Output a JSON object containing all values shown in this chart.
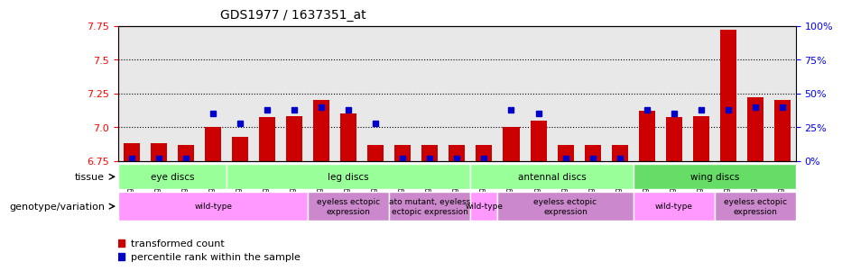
{
  "title": "GDS1977 / 1637351_at",
  "samples": [
    "GSM91570",
    "GSM91585",
    "GSM91609",
    "GSM91616",
    "GSM91617",
    "GSM91618",
    "GSM91619",
    "GSM91478",
    "GSM91479",
    "GSM91480",
    "GSM91472",
    "GSM91473",
    "GSM91474",
    "GSM91484",
    "GSM91491",
    "GSM91515",
    "GSM91475",
    "GSM91476",
    "GSM91477",
    "GSM91620",
    "GSM91621",
    "GSM91622",
    "GSM91481",
    "GSM91482",
    "GSM91483"
  ],
  "red_values": [
    6.88,
    6.88,
    6.87,
    7.0,
    6.93,
    7.07,
    7.08,
    7.2,
    7.1,
    6.87,
    6.87,
    6.87,
    6.87,
    6.87,
    7.0,
    7.05,
    6.87,
    6.87,
    6.87,
    7.12,
    7.07,
    7.08,
    7.72,
    7.22,
    7.2
  ],
  "blue_values": [
    0.02,
    0.02,
    0.02,
    0.35,
    0.28,
    0.38,
    0.38,
    0.4,
    0.38,
    0.28,
    0.02,
    0.02,
    0.02,
    0.02,
    0.38,
    0.35,
    0.02,
    0.02,
    0.02,
    0.38,
    0.35,
    0.38,
    0.38,
    0.4,
    0.4
  ],
  "y_min": 6.75,
  "y_max": 7.75,
  "y_ticks": [
    6.75,
    7.0,
    7.25,
    7.5,
    7.75
  ],
  "right_y_ticks": [
    0,
    25,
    50,
    75,
    100
  ],
  "right_y_labels": [
    "0%",
    "25%",
    "50%",
    "75%",
    "100%"
  ],
  "tissue_groups": [
    {
      "label": "eye discs",
      "start": 0,
      "end": 4,
      "color": "#99ff99"
    },
    {
      "label": "leg discs",
      "start": 4,
      "end": 13,
      "color": "#99ff99"
    },
    {
      "label": "antennal discs",
      "start": 13,
      "end": 19,
      "color": "#99ff99"
    },
    {
      "label": "wing discs",
      "start": 19,
      "end": 25,
      "color": "#66cc66"
    }
  ],
  "genotype_groups": [
    {
      "label": "wild-type",
      "start": 0,
      "end": 7,
      "color": "#ff99ff"
    },
    {
      "label": "eyeless ectopic\nexpression",
      "start": 7,
      "end": 10,
      "color": "#ff99ff"
    },
    {
      "label": "ato mutant, eyeless\nectopic expression",
      "start": 10,
      "end": 13,
      "color": "#ff99ff"
    },
    {
      "label": "wild-type",
      "start": 13,
      "end": 14,
      "color": "#ff99ff"
    },
    {
      "label": "eyeless ectopic\nexpression",
      "start": 14,
      "end": 19,
      "color": "#ff99ff"
    },
    {
      "label": "wild-type",
      "start": 19,
      "end": 22,
      "color": "#ff99ff"
    },
    {
      "label": "eyeless ectopic\nexpression",
      "start": 22,
      "end": 25,
      "color": "#ff99ff"
    }
  ],
  "bar_color": "#cc0000",
  "dot_color": "#0000cc",
  "bg_color": "#e8e8e8"
}
